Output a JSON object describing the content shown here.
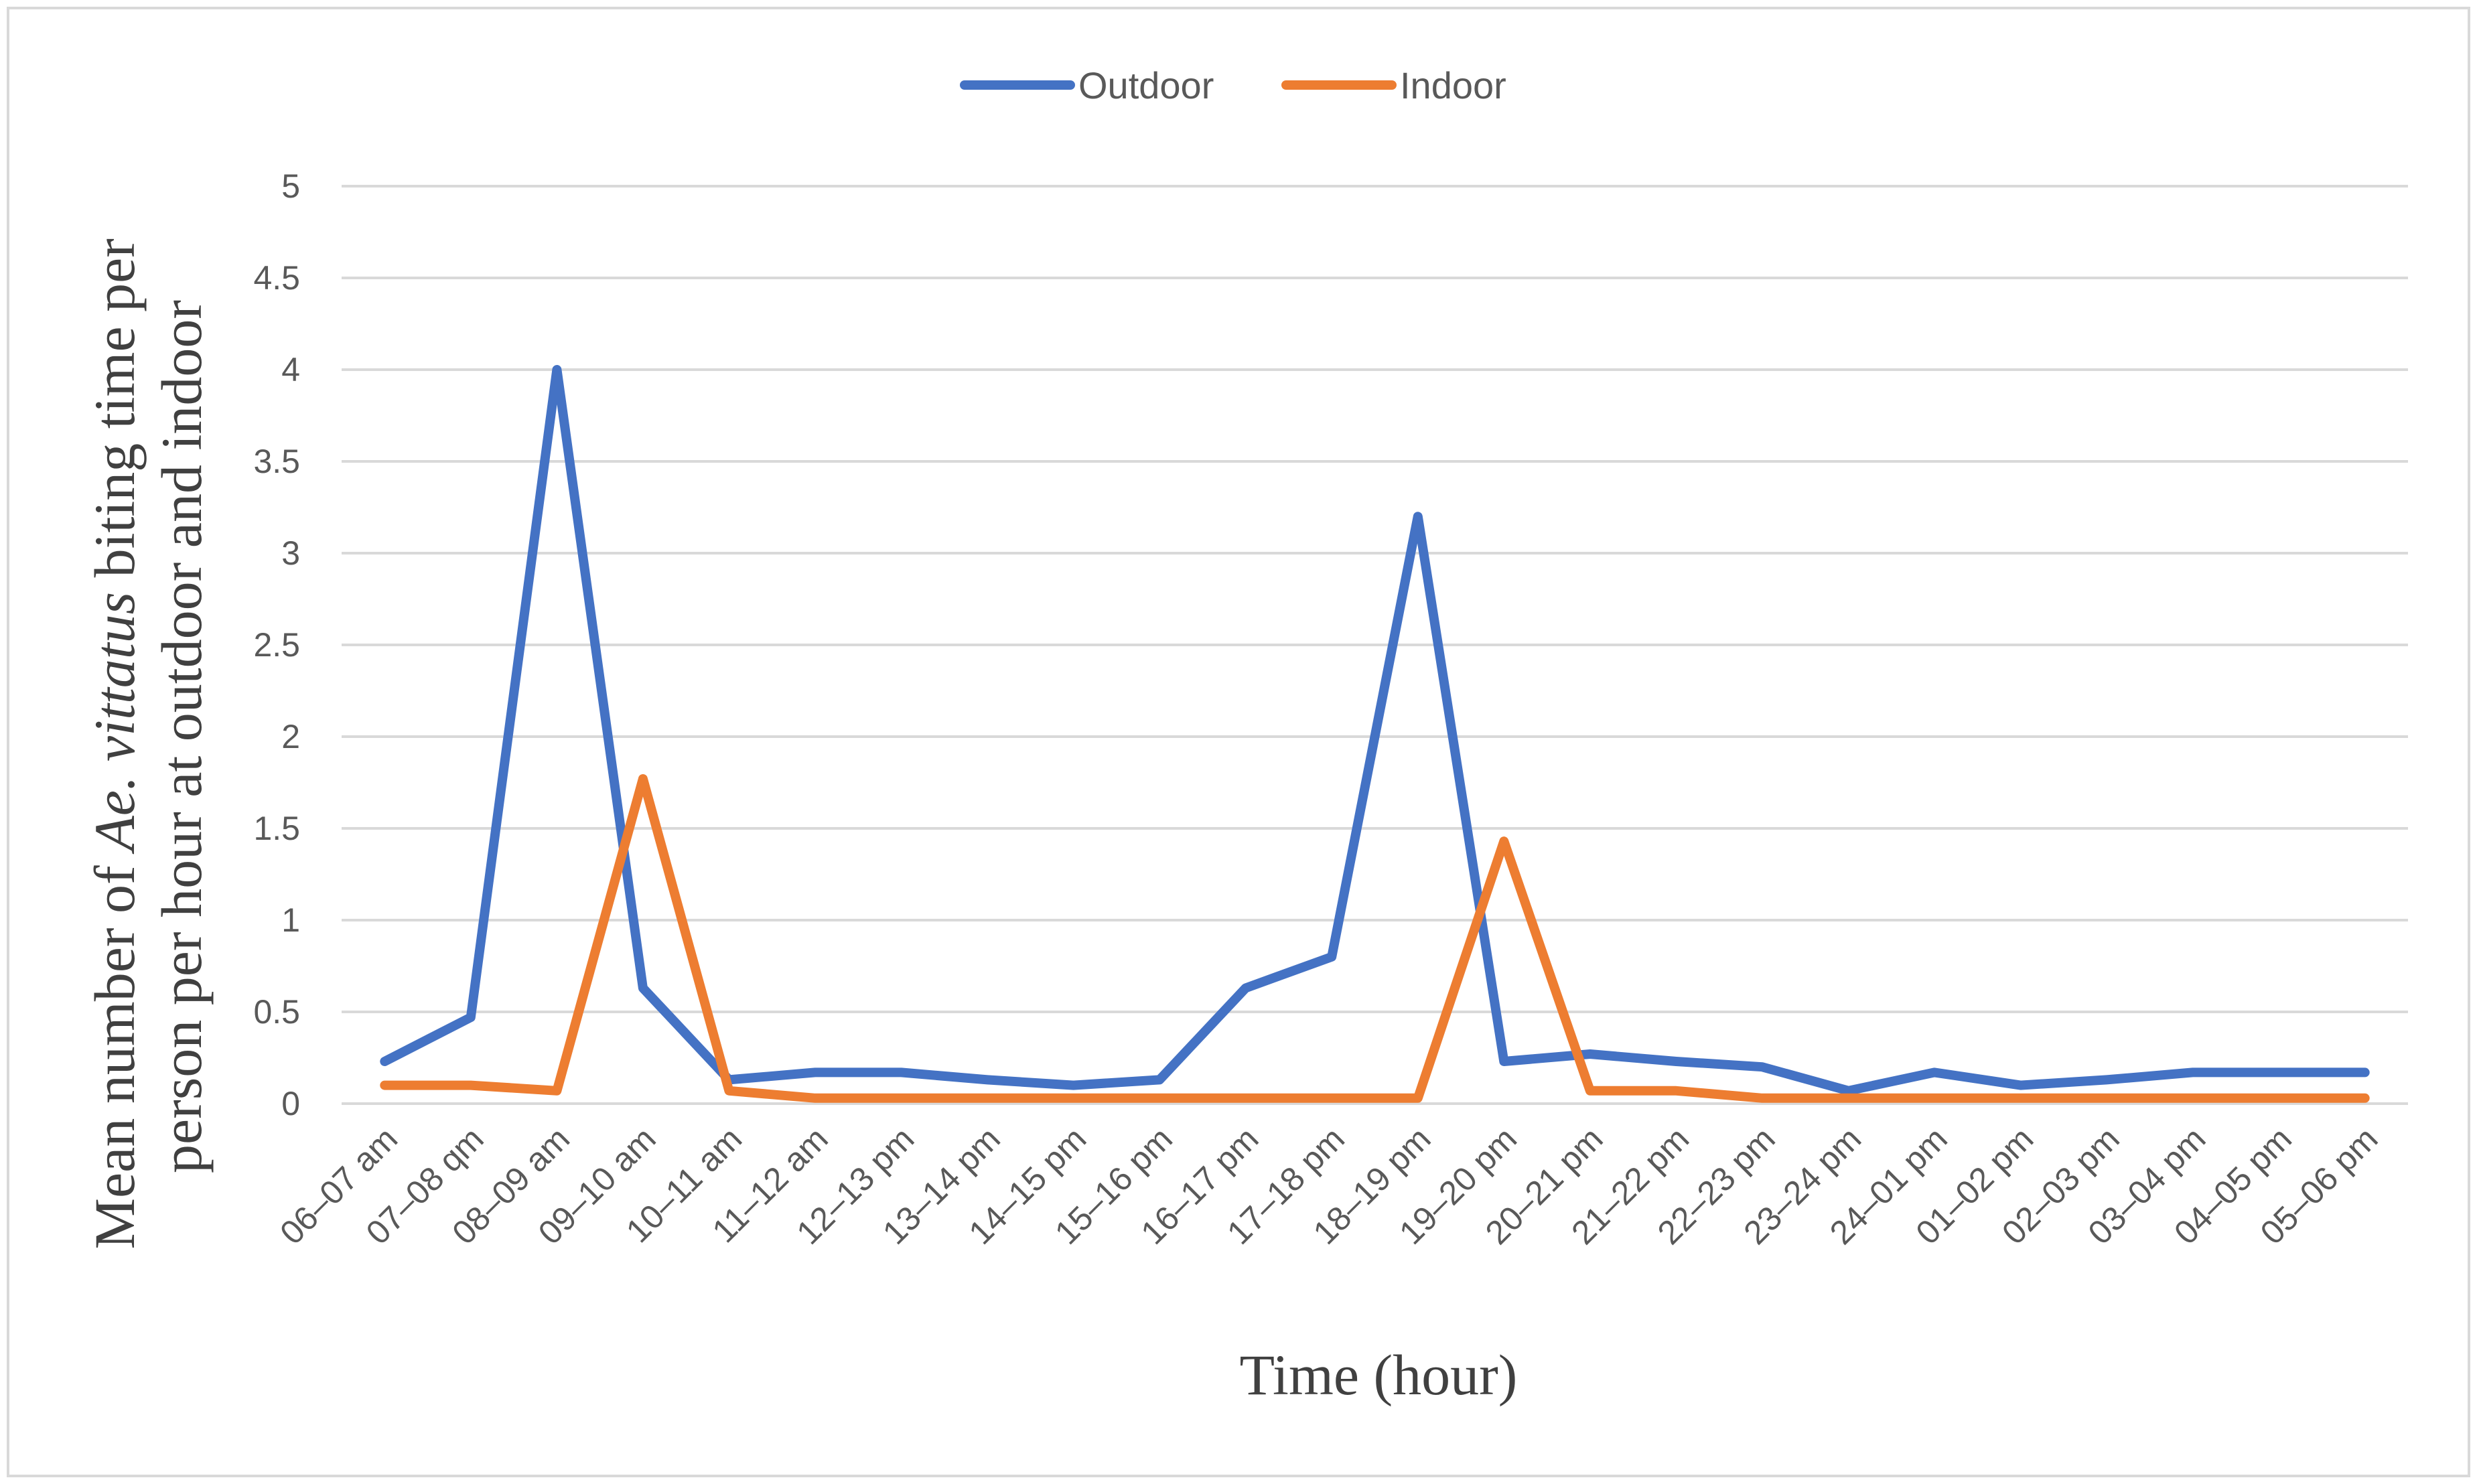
{
  "chart_data": {
    "type": "line",
    "title": "",
    "xlabel": "Time (hour)",
    "ylabel": {
      "prefix": "Mean number of ",
      "species": "Ae. vittatus",
      "suffix_line1": " biting time per",
      "line2": "person per hour at outdoor and indoor"
    },
    "ylim": [
      0,
      5
    ],
    "yticks": [
      "0",
      "0.5",
      "1",
      "1.5",
      "2",
      "2.5",
      "3",
      "3.5",
      "4",
      "4.5",
      "5"
    ],
    "grid": true,
    "legend_position": "top-center",
    "categories": [
      "06–07 am",
      "07–08 qm",
      "08–09 am",
      "09–10 am",
      "10–11 am",
      "11–12 am",
      "12–13 pm",
      "13–14 pm",
      "14–15 pm",
      "15–16 pm",
      "16–17 pm",
      "17–18 pm",
      "18–19 pm",
      "19–20 pm",
      "20–21 pm",
      "21–22 pm",
      "22–23 pm",
      "23–24 pm",
      "24–01 pm",
      "01–02 pm",
      "02–03 pm",
      "03–04 pm",
      "04–05 pm",
      "05–06 pm"
    ],
    "series": [
      {
        "name": "Outdoor",
        "color": "#4472c4",
        "values": [
          0.23,
          0.47,
          4.0,
          0.63,
          0.13,
          0.17,
          0.17,
          0.13,
          0.1,
          0.13,
          0.63,
          0.8,
          3.2,
          0.23,
          0.27,
          0.23,
          0.2,
          0.07,
          0.17,
          0.1,
          0.13,
          0.17,
          0.17,
          0.17
        ]
      },
      {
        "name": "Indoor",
        "color": "#ed7d31",
        "values": [
          0.1,
          0.1,
          0.07,
          1.77,
          0.07,
          0.03,
          0.03,
          0.03,
          0.03,
          0.03,
          0.03,
          0.03,
          0.03,
          1.43,
          0.07,
          0.07,
          0.03,
          0.03,
          0.03,
          0.03,
          0.03,
          0.03,
          0.03,
          0.03
        ]
      }
    ]
  }
}
